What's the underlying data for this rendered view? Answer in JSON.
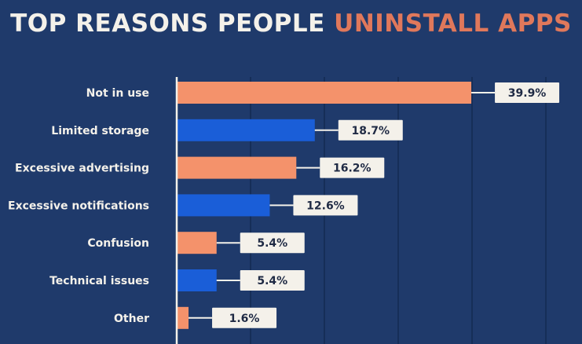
{
  "header": {
    "title_part1": "TOP REASONS PEOPLE ",
    "title_part2": "UNINSTALL APPS"
  },
  "colors": {
    "background": "#1f3a6b",
    "orange": "#f4926b",
    "blue": "#1a5ed8",
    "label_box": "#f4f1ea",
    "gridline": "#142a52",
    "title_white": "#f4f1ea",
    "title_accent": "#e0785b"
  },
  "chart_data": {
    "type": "bar",
    "orientation": "horizontal",
    "title": "TOP REASONS PEOPLE UNINSTALL APPS",
    "xlabel": "",
    "ylabel": "",
    "xlim": [
      0,
      50
    ],
    "grid": true,
    "legend": "none",
    "categories": [
      "Not in use",
      "Limited storage",
      "Excessive advertising",
      "Excessive notifications",
      "Confusion",
      "Technical issues",
      "Other"
    ],
    "values": [
      39.9,
      18.7,
      16.2,
      12.6,
      5.4,
      5.4,
      1.6
    ],
    "value_labels": [
      "39.9%",
      "18.7%",
      "16.2%",
      "12.6%",
      "5.4%",
      "5.4%",
      "1.6%"
    ],
    "bar_colors": [
      "orange",
      "blue",
      "orange",
      "blue",
      "orange",
      "blue",
      "orange"
    ]
  }
}
